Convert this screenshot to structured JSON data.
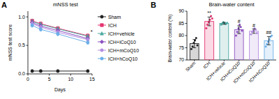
{
  "chart_data": [
    {
      "type": "line",
      "panel_label": "A",
      "title": "mNSS test",
      "x_label": "Days",
      "y_label": "mNSS test score",
      "x": [
        1,
        3,
        7,
        14
      ],
      "xlim": [
        0,
        15
      ],
      "xticks": [
        0,
        5,
        10,
        15
      ],
      "ylim": [
        0,
        1.1
      ],
      "yticks": [
        {
          "value": 0,
          "label": "0.0"
        },
        {
          "value": 0.5,
          "label": "0.5"
        },
        {
          "value": 1,
          "label": "1.0"
        }
      ],
      "legend": "right",
      "series": [
        {
          "name": "Sham",
          "color": "#222222",
          "marker": "circle",
          "values": [
            0.05,
            0.05,
            0.05,
            0.05
          ],
          "errors": [
            0.02,
            0.02,
            0.02,
            0.02
          ]
        },
        {
          "name": "ICH",
          "color": "#e4336f",
          "marker": "square",
          "values": [
            0.93,
            0.88,
            0.8,
            0.67
          ],
          "errors": [
            0.03,
            0.03,
            0.03,
            0.03
          ]
        },
        {
          "name": "ICH+vehicle",
          "color": "#4aa8a0",
          "marker": "triangle",
          "values": [
            0.92,
            0.87,
            0.79,
            0.66
          ],
          "errors": [
            0.03,
            0.03,
            0.03,
            0.03
          ]
        },
        {
          "name": "ICH+lCoQ10",
          "color": "#8a4fbf",
          "marker": "diamond",
          "values": [
            0.9,
            0.84,
            0.76,
            0.62
          ],
          "errors": [
            0.03,
            0.03,
            0.03,
            0.03
          ]
        },
        {
          "name": "ICH+mCoQ10",
          "color": "#b38de0",
          "marker": "circle",
          "values": [
            0.88,
            0.82,
            0.73,
            0.6
          ],
          "errors": [
            0.03,
            0.03,
            0.03,
            0.03
          ]
        },
        {
          "name": "ICH+hCoQ10",
          "color": "#6aaee8",
          "marker": "circle",
          "values": [
            0.85,
            0.78,
            0.7,
            0.55
          ],
          "errors": [
            0.03,
            0.03,
            0.03,
            0.03
          ]
        }
      ],
      "annotations": [
        {
          "text": "*",
          "series": 1,
          "index": 3
        }
      ]
    },
    {
      "type": "bar",
      "panel_label": "B",
      "title": "Brain-water content",
      "y_label": "Brain-water content (%)",
      "categories": [
        "Sham",
        "ICH",
        "ICH+vehicle",
        "ICH+lCoQ10",
        "ICH+mCoQ10",
        "ICH+hCoQ10"
      ],
      "values": [
        76.7,
        85.8,
        85.0,
        82.4,
        81.8,
        77.9
      ],
      "errors": [
        1.7,
        1.8,
        0.4,
        1.6,
        0.9,
        1.7
      ],
      "points": [
        [
          74.5,
          75.5,
          77,
          78,
          79,
          76
        ],
        [
          83,
          84.5,
          85.5,
          86.5,
          88,
          87
        ],
        [
          84.5,
          85,
          85.5,
          85,
          84.8,
          85.2
        ],
        [
          80,
          81.5,
          83,
          84.5,
          83.5,
          82
        ],
        [
          80.5,
          81.5,
          82,
          83,
          82.5,
          81
        ],
        [
          75.5,
          76.5,
          77.5,
          78.5,
          79.5,
          80
        ]
      ],
      "colors": [
        "#222222",
        "#e4336f",
        "#4aa8a0",
        "#8a4fbf",
        "#b38de0",
        "#6aaee8"
      ],
      "ylim": [
        70,
        90
      ],
      "yticks": [
        70,
        75,
        80,
        85,
        90
      ],
      "annotations": [
        null,
        "**",
        null,
        "#",
        "#",
        "##"
      ]
    }
  ]
}
